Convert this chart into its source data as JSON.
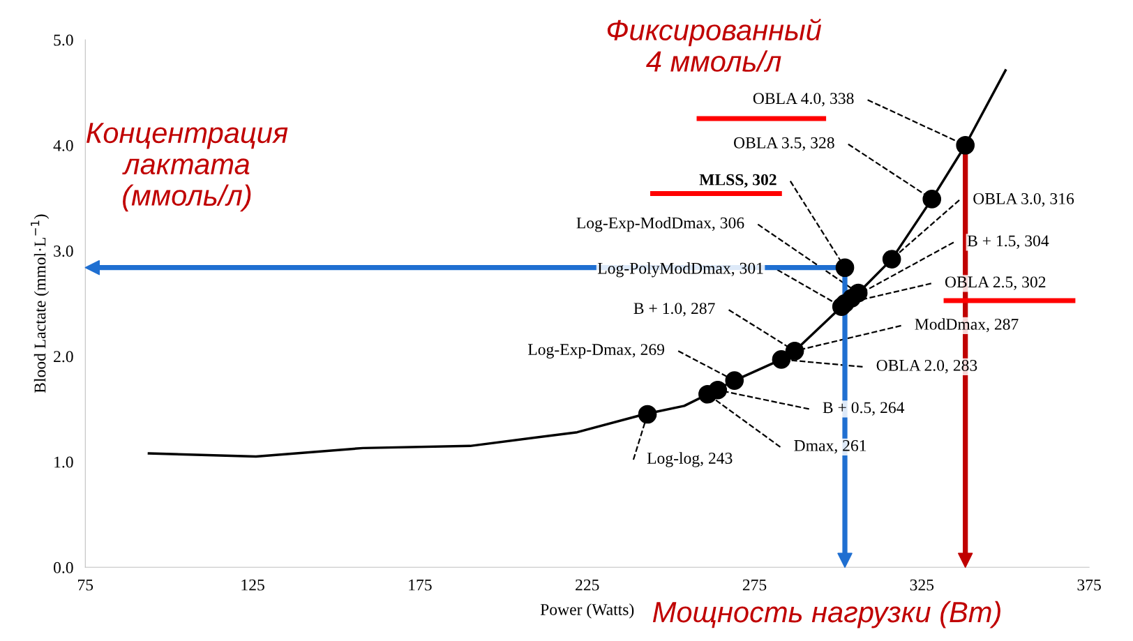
{
  "chart_data": {
    "type": "line",
    "xlabel": "Power (Watts)",
    "ylabel": "Blood Lactate (mmol·L$^{−1}$)",
    "xlim": [
      75,
      375
    ],
    "xticks": [
      75,
      125,
      175,
      225,
      275,
      325,
      375
    ],
    "ylim": [
      0,
      5
    ],
    "yticks": [
      {
        "value": 0,
        "label": "0.0"
      },
      {
        "value": 1,
        "label": "1.0"
      },
      {
        "value": 2,
        "label": "2.0"
      },
      {
        "value": 3,
        "label": "3.0"
      },
      {
        "value": 4,
        "label": "4.0"
      },
      {
        "value": 5,
        "label": "5.0"
      }
    ],
    "grid": false,
    "legend": false,
    "series": [
      {
        "type": "line",
        "color": "#000000",
        "marker": "none",
        "line_style": "solid",
        "x": [
          94,
          126,
          158,
          190,
          222,
          242,
          254,
          261,
          269,
          283,
          287,
          301,
          306,
          316,
          328,
          338,
          350
        ],
        "values": [
          1.08,
          1.05,
          1.13,
          1.15,
          1.28,
          1.45,
          1.53,
          1.64,
          1.77,
          1.97,
          2.05,
          2.47,
          2.6,
          2.92,
          3.49,
          4.0,
          4.71
        ]
      },
      {
        "type": "scatter",
        "color": "#000000",
        "marker": "circle",
        "x": [
          243,
          261,
          264,
          269,
          283,
          287,
          301,
          302,
          302,
          304,
          306,
          316,
          328,
          338
        ],
        "values": [
          1.45,
          1.64,
          1.68,
          1.77,
          1.97,
          2.05,
          2.47,
          2.5,
          2.84,
          2.55,
          2.6,
          2.92,
          3.49,
          4.0
        ]
      }
    ],
    "annotations": [
      {
        "text": "OBLA 4.0, 338",
        "x": 338,
        "y": 4.0
      },
      {
        "text": "OBLA 3.5, 328",
        "x": 328,
        "y": 3.49
      },
      {
        "text": "MLSS, 302",
        "x": 302,
        "y": 2.84
      },
      {
        "text": "Log-Exp-ModDmax, 306",
        "x": 306,
        "y": 2.6
      },
      {
        "text": "Log-PolyModDmax, 301",
        "x": 301,
        "y": 2.47
      },
      {
        "text": "B + 1.0, 287",
        "x": 287,
        "y": 2.05
      },
      {
        "text": "Log-Exp-Dmax, 269",
        "x": 269,
        "y": 1.77
      },
      {
        "text": "Log-log, 243",
        "x": 243,
        "y": 1.45
      },
      {
        "text": "Dmax, 261",
        "x": 261,
        "y": 1.64
      },
      {
        "text": "B + 0.5, 264",
        "x": 264,
        "y": 1.68
      },
      {
        "text": "OBLA 2.0, 283",
        "x": 283,
        "y": 1.97
      },
      {
        "text": "ModDmax, 287",
        "x": 287,
        "y": 2.05
      },
      {
        "text": "OBLA 2.5, 302",
        "x": 302,
        "y": 2.5
      },
      {
        "text": "B + 1.5, 304",
        "x": 304,
        "y": 2.55
      },
      {
        "text": "OBLA 3.0, 316",
        "x": 316,
        "y": 2.92
      },
      "Концентрация\nлактата\n(ммоль/л)",
      "Фиксированный\n4 ммоль/л",
      "Мощность нагрузки (Вт)"
    ]
  }
}
